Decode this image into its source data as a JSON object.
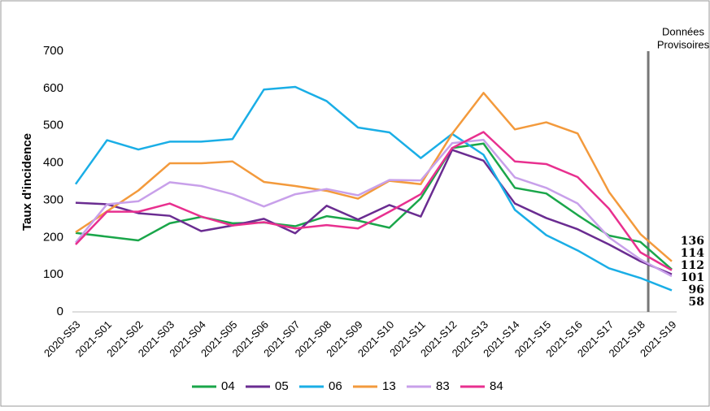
{
  "chart_data": {
    "type": "line",
    "y_label": "Taux d'incidence",
    "annotation": [
      "Données",
      "Provisoires"
    ],
    "categories": [
      "2020-S53",
      "2021-S01",
      "2021-S02",
      "2021-S03",
      "2021-S04",
      "2021-S05",
      "2021-S06",
      "2021-S07",
      "2021-S08",
      "2021-S09",
      "2021-S10",
      "2021-S11",
      "2021-S12",
      "2021-S13",
      "2021-S14",
      "2021-S15",
      "2021-S16",
      "2021-S17",
      "2021-S18",
      "2021-S19"
    ],
    "series": [
      {
        "name": "04",
        "color": "#1aa64a",
        "values": [
          212,
          202,
          192,
          238,
          255,
          238,
          240,
          230,
          257,
          245,
          226,
          305,
          440,
          452,
          333,
          318,
          260,
          205,
          188,
          114
        ]
      },
      {
        "name": "05",
        "color": "#6a2c91",
        "values": [
          293,
          289,
          265,
          258,
          217,
          232,
          250,
          211,
          285,
          248,
          287,
          256,
          435,
          406,
          291,
          252,
          222,
          181,
          136,
          101
        ]
      },
      {
        "name": "06",
        "color": "#1aaee6",
        "values": [
          343,
          461,
          436,
          457,
          457,
          464,
          597,
          604,
          566,
          495,
          482,
          413,
          478,
          422,
          274,
          206,
          165,
          117,
          91,
          58
        ]
      },
      {
        "name": "13",
        "color": "#f39a3c",
        "values": [
          214,
          270,
          326,
          399,
          399,
          404,
          349,
          338,
          325,
          304,
          352,
          343,
          478,
          588,
          490,
          509,
          479,
          322,
          209,
          136
        ]
      },
      {
        "name": "83",
        "color": "#c8a0ea",
        "values": [
          186,
          289,
          297,
          348,
          338,
          316,
          283,
          316,
          330,
          313,
          354,
          353,
          453,
          462,
          361,
          333,
          291,
          200,
          141,
          96
        ]
      },
      {
        "name": "84",
        "color": "#e8308f",
        "values": [
          181,
          269,
          269,
          291,
          256,
          232,
          241,
          224,
          233,
          224,
          269,
          316,
          440,
          483,
          404,
          397,
          362,
          277,
          160,
          112
        ]
      }
    ],
    "ylim": [
      0,
      700
    ],
    "yticks": [
      0,
      100,
      200,
      300,
      400,
      500,
      600,
      700
    ],
    "grid": false
  }
}
